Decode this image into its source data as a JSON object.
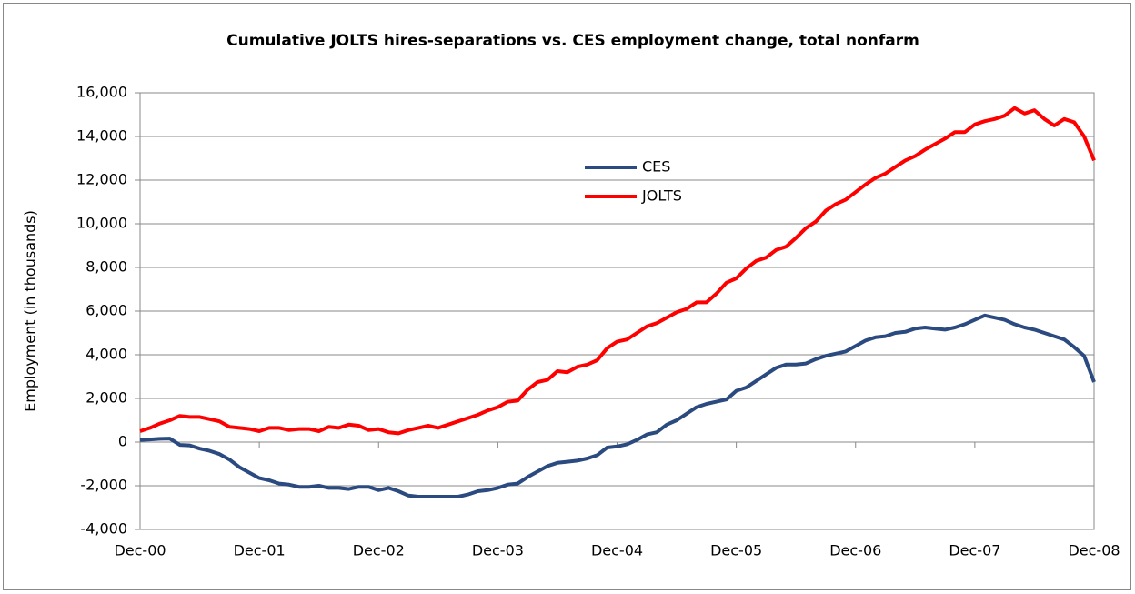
{
  "chart_data": {
    "type": "line",
    "title": "Cumulative JOLTS hires-separations vs. CES employment change, total nonfarm",
    "y_label": "Employment (in thousands)",
    "categories": [
      "Dec-00",
      null,
      null,
      null,
      null,
      null,
      null,
      null,
      null,
      null,
      null,
      null,
      "Dec-01",
      null,
      null,
      null,
      null,
      null,
      null,
      null,
      null,
      null,
      null,
      null,
      "Dec-02",
      null,
      null,
      null,
      null,
      null,
      null,
      null,
      null,
      null,
      null,
      null,
      "Dec-03",
      null,
      null,
      null,
      null,
      null,
      null,
      null,
      null,
      null,
      null,
      null,
      "Dec-04",
      null,
      null,
      null,
      null,
      null,
      null,
      null,
      null,
      null,
      null,
      null,
      "Dec-05",
      null,
      null,
      null,
      null,
      null,
      null,
      null,
      null,
      null,
      null,
      null,
      "Dec-06",
      null,
      null,
      null,
      null,
      null,
      null,
      null,
      null,
      null,
      null,
      null,
      "Dec-07",
      null,
      null,
      null,
      null,
      null,
      null,
      null,
      null,
      null,
      null,
      null,
      "Dec-08"
    ],
    "series": [
      {
        "name": "CES",
        "color": "#2a4a80",
        "values": [
          100,
          120,
          150,
          160,
          -130,
          -150,
          -300,
          -400,
          -550,
          -800,
          -1150,
          -1400,
          -1650,
          -1750,
          -1900,
          -1950,
          -2050,
          -2050,
          -2000,
          -2100,
          -2100,
          -2150,
          -2050,
          -2050,
          -2200,
          -2100,
          -2250,
          -2450,
          -2500,
          -2500,
          -2500,
          -2500,
          -2500,
          -2400,
          -2250,
          -2200,
          -2100,
          -1950,
          -1900,
          -1600,
          -1350,
          -1100,
          -950,
          -900,
          -850,
          -750,
          -600,
          -250,
          -200,
          -100,
          100,
          350,
          450,
          800,
          1000,
          1300,
          1600,
          1750,
          1850,
          1950,
          2350,
          2500,
          2800,
          3100,
          3400,
          3550,
          3550,
          3600,
          3800,
          3950,
          4050,
          4150,
          4400,
          4650,
          4800,
          4850,
          5000,
          5050,
          5200,
          5250,
          5200,
          5150,
          5250,
          5400,
          5600,
          5800,
          5700,
          5600,
          5400,
          5250,
          5150,
          5000,
          4850,
          4700,
          4350,
          3950,
          2750
        ]
      },
      {
        "name": "JOLTS",
        "color": "#ff0000",
        "values": [
          500,
          650,
          850,
          1000,
          1200,
          1150,
          1150,
          1050,
          950,
          700,
          650,
          600,
          500,
          650,
          650,
          550,
          600,
          600,
          500,
          700,
          650,
          800,
          750,
          550,
          600,
          450,
          400,
          550,
          650,
          750,
          650,
          800,
          950,
          1100,
          1250,
          1450,
          1600,
          1850,
          1900,
          2400,
          2750,
          2850,
          3250,
          3200,
          3450,
          3550,
          3750,
          4300,
          4600,
          4700,
          5000,
          5300,
          5450,
          5700,
          5950,
          6100,
          6400,
          6400,
          6800,
          7300,
          7500,
          7950,
          8300,
          8450,
          8800,
          8950,
          9350,
          9800,
          10100,
          10600,
          10900,
          11100,
          11450,
          11800,
          12100,
          12300,
          12600,
          12900,
          13100,
          13400,
          13650,
          13900,
          14200,
          14200,
          14550,
          14700,
          14800,
          14950,
          15300,
          15050,
          15200,
          14800,
          14500,
          14800,
          14650,
          14000,
          12900
        ]
      }
    ],
    "ylim": [
      -4000,
      16000
    ],
    "yticks": [
      {
        "value": -4000,
        "label": "-4,000"
      },
      {
        "value": -2000,
        "label": "-2,000"
      },
      0,
      {
        "value": 2000,
        "label": "2,000"
      },
      {
        "value": 4000,
        "label": "4,000"
      },
      {
        "value": 6000,
        "label": "6,000"
      },
      {
        "value": 8000,
        "label": "8,000"
      },
      {
        "value": 10000,
        "label": "10,000"
      },
      {
        "value": 12000,
        "label": "12,000"
      },
      {
        "value": 14000,
        "label": "14,000"
      },
      {
        "value": 16000,
        "label": "16,000"
      }
    ],
    "grid": true
  }
}
